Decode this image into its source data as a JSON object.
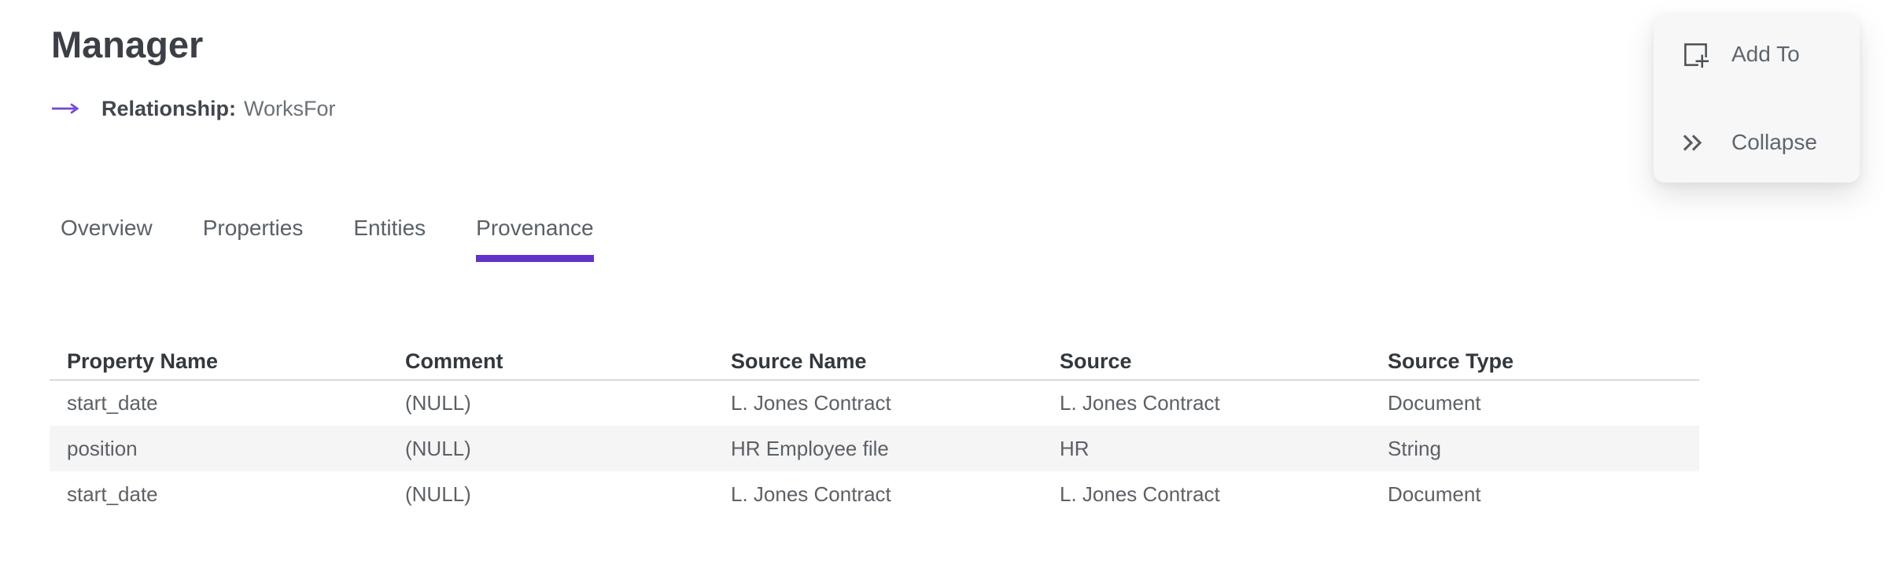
{
  "page": {
    "title": "Manager",
    "subtitle": {
      "icon": "arrow-right-icon",
      "label": "Relationship:",
      "value": "WorksFor"
    }
  },
  "tabs": [
    {
      "label": "Overview",
      "active": false
    },
    {
      "label": "Properties",
      "active": false
    },
    {
      "label": "Entities",
      "active": false
    },
    {
      "label": "Provenance",
      "active": true
    }
  ],
  "table": {
    "columns": [
      "Property Name",
      "Comment",
      "Source Name",
      "Source",
      "Source Type"
    ],
    "rows": [
      [
        "start_date",
        "(NULL)",
        "L. Jones Contract",
        "L. Jones Contract",
        "Document"
      ],
      [
        "position",
        "(NULL)",
        "HR Employee file",
        "HR",
        "String"
      ],
      [
        "start_date",
        "(NULL)",
        "L. Jones Contract",
        "L. Jones Contract",
        "Document"
      ]
    ]
  },
  "actions": [
    {
      "icon": "add-to-icon",
      "label": "Add To"
    },
    {
      "icon": "collapse-icon",
      "label": "Collapse"
    }
  ],
  "colors": {
    "accent_purple": "#6333C9",
    "row_alt_bg": "#F5F5F6",
    "header_border": "#D8DADC",
    "card_bg": "#F7F7F8"
  }
}
